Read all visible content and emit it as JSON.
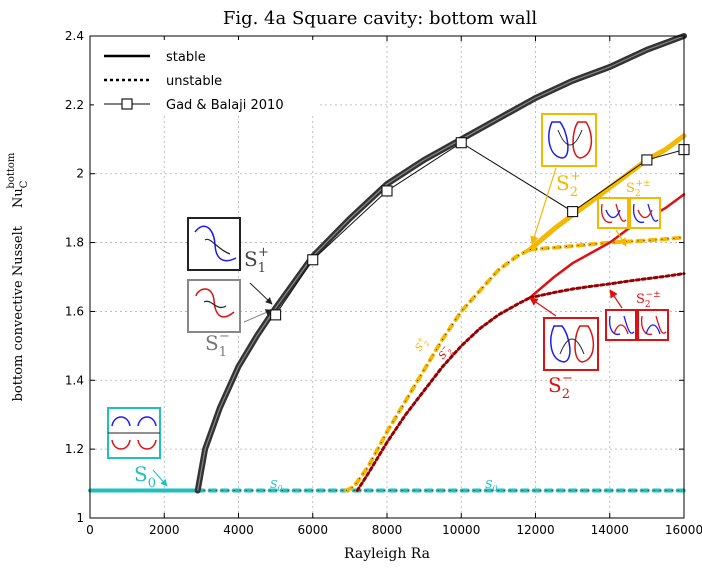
{
  "chart_data": {
    "type": "line",
    "title": "Fig. 4a     Square cavity: bottom wall",
    "xlabel": "Rayleigh Ra",
    "ylabel_prefix": "bottom convective Nusselt",
    "ylabel_main": "Nu",
    "ylabel_sub": "C",
    "ylabel_sup": "bottom",
    "xlim": [
      0,
      16000
    ],
    "ylim": [
      1.0,
      2.4
    ],
    "xticks": [
      0,
      2000,
      4000,
      6000,
      8000,
      10000,
      12000,
      14000,
      16000
    ],
    "yticks": [
      1,
      1.2,
      1.4,
      1.6,
      1.8,
      2,
      2.2,
      2.4
    ],
    "xtick_labels": [
      "0",
      "2000",
      "4000",
      "6000",
      "8000",
      "10000",
      "12000",
      "14000",
      "16000"
    ],
    "ytick_labels": [
      "1",
      "1.2",
      "1.4",
      "1.6",
      "1.8",
      "2",
      "2.2",
      "2.4"
    ],
    "grid": true,
    "legend_position": "top-left",
    "legend": [
      {
        "label": "stable",
        "style": "solid"
      },
      {
        "label": "unstable",
        "style": "dotted"
      },
      {
        "label": "Gad & Balaji 2010",
        "style": "line-square-marker"
      }
    ],
    "colors": {
      "black": "#333333",
      "cyan": "#20c0c0",
      "orange": "#f5b800",
      "red": "#dd1111",
      "darkred": "#990000",
      "gray": "#777777"
    },
    "series": [
      {
        "name": "S0",
        "stability": "stable",
        "color": "cyan",
        "x": [
          0,
          2900
        ],
        "y": [
          1.08,
          1.08
        ]
      },
      {
        "name": "S0",
        "stability": "unstable",
        "color": "cyan",
        "x": [
          2900,
          16000
        ],
        "y": [
          1.08,
          1.08
        ]
      },
      {
        "name": "S1",
        "stability": "stable",
        "color": "black",
        "x": [
          2900,
          3100,
          3500,
          4000,
          4500,
          5000,
          6000,
          7000,
          8000,
          9000,
          10000,
          11000,
          12000,
          13000,
          14000,
          15000,
          16000
        ],
        "y": [
          1.08,
          1.2,
          1.32,
          1.44,
          1.53,
          1.61,
          1.76,
          1.87,
          1.97,
          2.04,
          2.1,
          2.16,
          2.22,
          2.27,
          2.31,
          2.36,
          2.4
        ]
      },
      {
        "name": "S2+",
        "stability": "unstable",
        "color": "orange",
        "x": [
          6900,
          7100,
          7500,
          8000,
          8500,
          9000,
          9500,
          10000,
          10500,
          11000,
          11500,
          11850
        ],
        "y": [
          1.08,
          1.09,
          1.15,
          1.25,
          1.34,
          1.43,
          1.52,
          1.6,
          1.66,
          1.72,
          1.76,
          1.78
        ]
      },
      {
        "name": "S2+",
        "stability": "stable",
        "color": "orange",
        "x": [
          11850,
          12500,
          13000,
          13500,
          14000,
          14500,
          15000,
          15500,
          16000
        ],
        "y": [
          1.78,
          1.84,
          1.88,
          1.92,
          1.96,
          2.0,
          2.04,
          2.07,
          2.11
        ]
      },
      {
        "name": "S2+-",
        "stability": "unstable",
        "color": "orange",
        "x": [
          11850,
          12500,
          13000,
          13500,
          14000,
          14500,
          15000,
          15500,
          16000
        ],
        "y": [
          1.78,
          1.785,
          1.79,
          1.795,
          1.8,
          1.803,
          1.806,
          1.81,
          1.815
        ]
      },
      {
        "name": "S2-",
        "stability": "unstable",
        "color": "darkred",
        "x": [
          7200,
          7500,
          8000,
          8500,
          9000,
          9500,
          10000,
          10500,
          11000,
          11500,
          11850
        ],
        "y": [
          1.08,
          1.13,
          1.22,
          1.3,
          1.37,
          1.44,
          1.5,
          1.55,
          1.59,
          1.62,
          1.64
        ]
      },
      {
        "name": "S2-",
        "stability": "stable",
        "color": "red",
        "x": [
          11850,
          12500,
          13000,
          13500,
          14000,
          14500,
          15000,
          15500,
          16000
        ],
        "y": [
          1.64,
          1.7,
          1.74,
          1.77,
          1.8,
          1.84,
          1.87,
          1.9,
          1.94
        ]
      },
      {
        "name": "S2-+-",
        "stability": "unstable",
        "color": "darkred",
        "x": [
          11850,
          12500,
          13000,
          13500,
          14000,
          14500,
          15000,
          15500,
          16000
        ],
        "y": [
          1.64,
          1.655,
          1.665,
          1.673,
          1.68,
          1.688,
          1.695,
          1.702,
          1.71
        ]
      },
      {
        "name": "Gad & Balaji 2010",
        "stability": "reference",
        "color": "black",
        "x": [
          5000,
          6000,
          8000,
          10000,
          13000,
          15000,
          16000
        ],
        "y": [
          1.59,
          1.75,
          1.95,
          2.09,
          1.89,
          2.04,
          2.07
        ]
      }
    ],
    "annotations": {
      "S0_label": "S",
      "S0_sub": "0",
      "S1p_label": "S",
      "S1p_sub": "1",
      "S1p_sup": "+",
      "S1m_label": "S",
      "S1m_sub": "1",
      "S1m_sup": "−",
      "S2p_label": "S",
      "S2p_sub": "2",
      "S2p_sup": "+",
      "S2m_label": "S",
      "S2m_sub": "2",
      "S2m_sup": "−",
      "S2pm_label": "S",
      "S2pm_sub": "2",
      "S2pm_sup": "+±",
      "S2mpm_label": "S",
      "S2mpm_sub": "2",
      "S2mpm_sup": "−±",
      "s0_inline": "S",
      "s0_inline_sub": "0",
      "s2p_inline": "S",
      "s2p_inline_sup": "+",
      "s2p_inline_sub": "2",
      "s2m_inline": "S",
      "s2m_inline_sup": "−",
      "s2m_inline_sub": "2"
    }
  }
}
